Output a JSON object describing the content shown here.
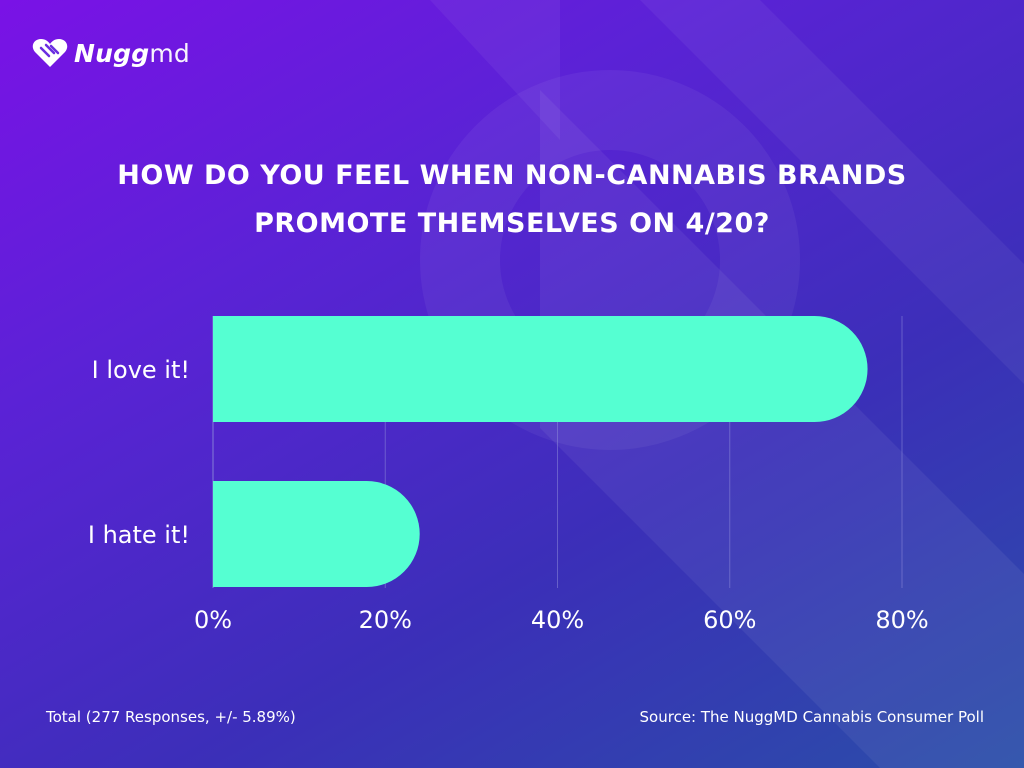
{
  "brand": {
    "logo_bold": "Nugg",
    "logo_light": "md"
  },
  "colors": {
    "bar": "#55ffd2",
    "grid": "#8a86d8"
  },
  "chart_data": {
    "type": "bar",
    "orientation": "horizontal",
    "title": "HOW DO YOU FEEL WHEN NON-CANNABIS BRANDS PROMOTE THEMSELVES ON 4/20?",
    "categories": [
      "I love it!",
      "I hate it!"
    ],
    "values": [
      76,
      24
    ],
    "xlim": [
      0,
      80
    ],
    "xticks": [
      0,
      20,
      40,
      60,
      80
    ],
    "xtick_labels": [
      "0%",
      "20%",
      "40%",
      "60%",
      "80%"
    ],
    "grid": true,
    "legend": "none"
  },
  "footer": {
    "total": "Total (277 Responses, +/- 5.89%)",
    "source": "Source: The NuggMD Cannabis Consumer Poll"
  }
}
